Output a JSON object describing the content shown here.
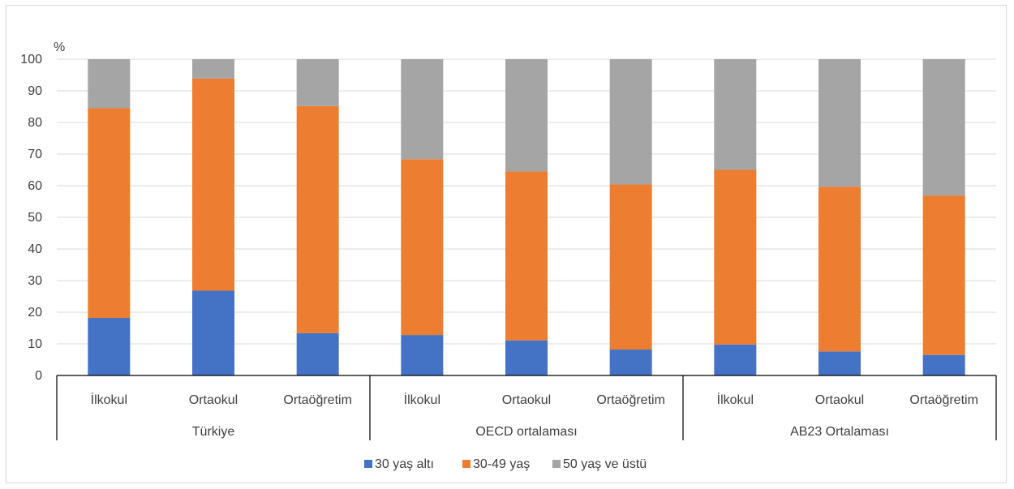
{
  "chart_data": {
    "type": "bar",
    "stacked": true,
    "ylabel": "%",
    "ylim": [
      0,
      100
    ],
    "yticks": [
      0,
      10,
      20,
      30,
      40,
      50,
      60,
      70,
      80,
      90,
      100
    ],
    "grid": true,
    "legend_position": "bottom",
    "groups": [
      {
        "label": "Türkiye",
        "categories": [
          "İlkokul",
          "Ortaokul",
          "Ortaöğretim"
        ]
      },
      {
        "label": "OECD ortalaması",
        "categories": [
          "İlkokul",
          "Ortaokul",
          "Ortaöğretim"
        ]
      },
      {
        "label": "AB23 Ortalaması",
        "categories": [
          "İlkokul",
          "Ortaokul",
          "Ortaöğretim"
        ]
      }
    ],
    "series": [
      {
        "name": "30 yaş altı",
        "color": "#4472c4",
        "values": [
          18.2,
          26.8,
          13.4,
          12.8,
          11.1,
          8.2,
          9.8,
          7.6,
          6.5
        ]
      },
      {
        "name": "30-49 yaş",
        "color": "#ed7d31",
        "values": [
          66.3,
          67.1,
          71.8,
          55.6,
          53.4,
          52.2,
          55.2,
          52.1,
          50.4
        ]
      },
      {
        "name": "50 yaş ve üstü",
        "color": "#a5a5a5",
        "values": [
          15.5,
          6.1,
          14.8,
          31.6,
          35.5,
          39.6,
          35.0,
          40.3,
          43.1
        ]
      }
    ]
  }
}
